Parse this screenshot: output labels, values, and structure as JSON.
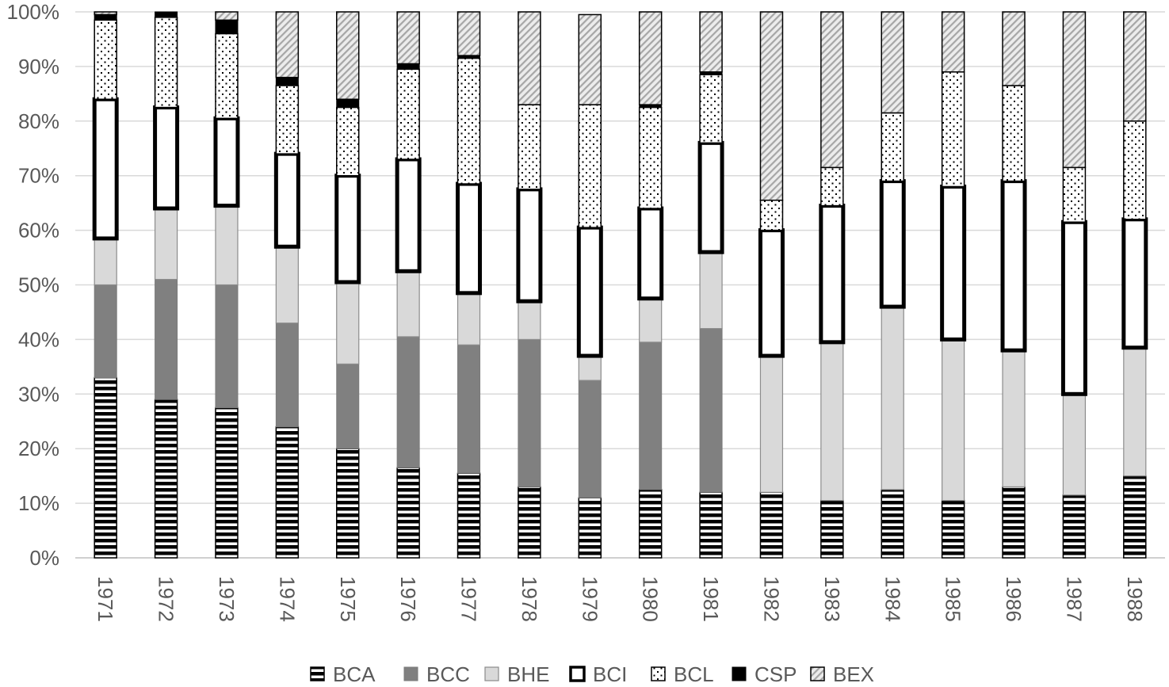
{
  "chart_data": {
    "type": "bar",
    "stacked": "percent",
    "categories": [
      "1971",
      "1972",
      "1973",
      "1974",
      "1975",
      "1976",
      "1977",
      "1978",
      "1979",
      "1980",
      "1981",
      "1982",
      "1983",
      "1984",
      "1985",
      "1986",
      "1987",
      "1988"
    ],
    "y_ticks": [
      "0%",
      "10%",
      "20%",
      "30%",
      "40%",
      "50%",
      "60%",
      "70%",
      "80%",
      "90%",
      "100%"
    ],
    "ylim": [
      0,
      100
    ],
    "grid": true,
    "legend_position": "bottom",
    "series": [
      {
        "name": "BCA",
        "pattern": "horizontal-stripes",
        "values": [
          33,
          29,
          27.5,
          24,
          20,
          16.5,
          15.5,
          13,
          11,
          12.5,
          12,
          12,
          10.5,
          12.5,
          10.5,
          13,
          11.5,
          15
        ]
      },
      {
        "name": "BCC",
        "pattern": "solid-gray",
        "color": "#808080",
        "values": [
          17,
          22,
          22.5,
          19,
          15.5,
          24,
          23.5,
          27,
          21.5,
          27,
          30,
          0,
          0,
          0,
          0,
          0,
          0,
          0
        ]
      },
      {
        "name": "BHE",
        "pattern": "solid-light-gray",
        "color": "#d9d9d9",
        "values": [
          8.5,
          13,
          14.5,
          14,
          15,
          12,
          9.5,
          7,
          4.5,
          8,
          14,
          25,
          29,
          33.5,
          29.5,
          25,
          18.5,
          23.5
        ]
      },
      {
        "name": "BCI",
        "pattern": "white-thick-border",
        "values": [
          25.5,
          18.5,
          16,
          17,
          19.5,
          20.5,
          20,
          20.5,
          23.5,
          16.5,
          20,
          23,
          25,
          23,
          28,
          31,
          31.5,
          23.5
        ]
      },
      {
        "name": "BCL",
        "pattern": "dots",
        "values": [
          14.5,
          16.5,
          15.5,
          12.5,
          12.5,
          16.5,
          23,
          15.5,
          22.5,
          18.5,
          12.5,
          5.5,
          7,
          12.5,
          21,
          17.5,
          10,
          18
        ]
      },
      {
        "name": "CSP",
        "pattern": "solid-black",
        "color": "#000000",
        "values": [
          1,
          1,
          2.5,
          1.5,
          1.5,
          1,
          0.5,
          0,
          0,
          0.5,
          0.5,
          0,
          0,
          0,
          0,
          0,
          0,
          0
        ]
      },
      {
        "name": "BEX",
        "pattern": "diagonal-hatch",
        "values": [
          0.5,
          0,
          1.5,
          12,
          16,
          9.5,
          8,
          17,
          16.5,
          17,
          11,
          34.5,
          28.5,
          18.5,
          11,
          13.5,
          28.5,
          20
        ]
      }
    ]
  }
}
